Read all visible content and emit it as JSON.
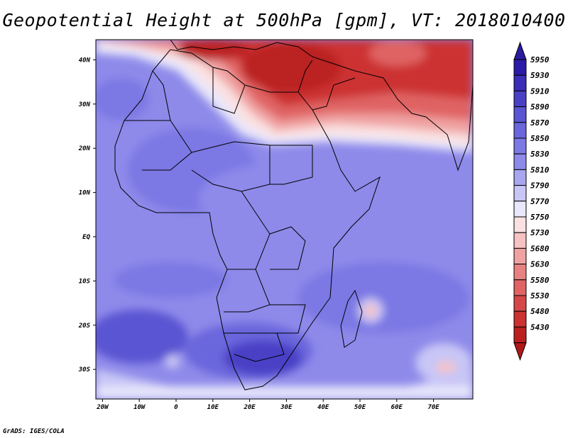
{
  "title": "Geopotential Height at 500hPa [gpm], VT: 2018010400",
  "credit": "GrADS: IGES/COLA",
  "lat_ticks": [
    {
      "label": "40N",
      "value": 40
    },
    {
      "label": "30N",
      "value": 30
    },
    {
      "label": "20N",
      "value": 20
    },
    {
      "label": "10N",
      "value": 10
    },
    {
      "label": "EQ",
      "value": 0
    },
    {
      "label": "10S",
      "value": -10
    },
    {
      "label": "20S",
      "value": -20
    },
    {
      "label": "30S",
      "value": -30
    }
  ],
  "lon_ticks": [
    {
      "label": "20W",
      "value": -20
    },
    {
      "label": "10W",
      "value": -10
    },
    {
      "label": "0",
      "value": 0
    },
    {
      "label": "10E",
      "value": 10
    },
    {
      "label": "20E",
      "value": 20
    },
    {
      "label": "30E",
      "value": 30
    },
    {
      "label": "40E",
      "value": 40
    },
    {
      "label": "50E",
      "value": 50
    },
    {
      "label": "60E",
      "value": 60
    },
    {
      "label": "70E",
      "value": 70
    }
  ],
  "colorbar": [
    {
      "label": "5950",
      "color": "#2a1aa8"
    },
    {
      "label": "5930",
      "color": "#3a2db8"
    },
    {
      "label": "5910",
      "color": "#4a40c6"
    },
    {
      "label": "5890",
      "color": "#5a55d2"
    },
    {
      "label": "5870",
      "color": "#6a66dc"
    },
    {
      "label": "5850",
      "color": "#7c78e4"
    },
    {
      "label": "5830",
      "color": "#8e8aea"
    },
    {
      "label": "5810",
      "color": "#a9a6f0"
    },
    {
      "label": "5790",
      "color": "#c8c6f6"
    },
    {
      "label": "5770",
      "color": "#e8e7fb"
    },
    {
      "label": "5750",
      "color": "#fbe1e1"
    },
    {
      "label": "5730",
      "color": "#f7c2c2"
    },
    {
      "label": "5680",
      "color": "#f0a2a2"
    },
    {
      "label": "5630",
      "color": "#e88282"
    },
    {
      "label": "5580",
      "color": "#e06464"
    },
    {
      "label": "5530",
      "color": "#d64848"
    },
    {
      "label": "5480",
      "color": "#cc3232"
    },
    {
      "label": "5430",
      "color": "#bb2020"
    }
  ],
  "colorbar_top_color": "#2a1aa0",
  "colorbar_bottom_color": "#b01818"
}
